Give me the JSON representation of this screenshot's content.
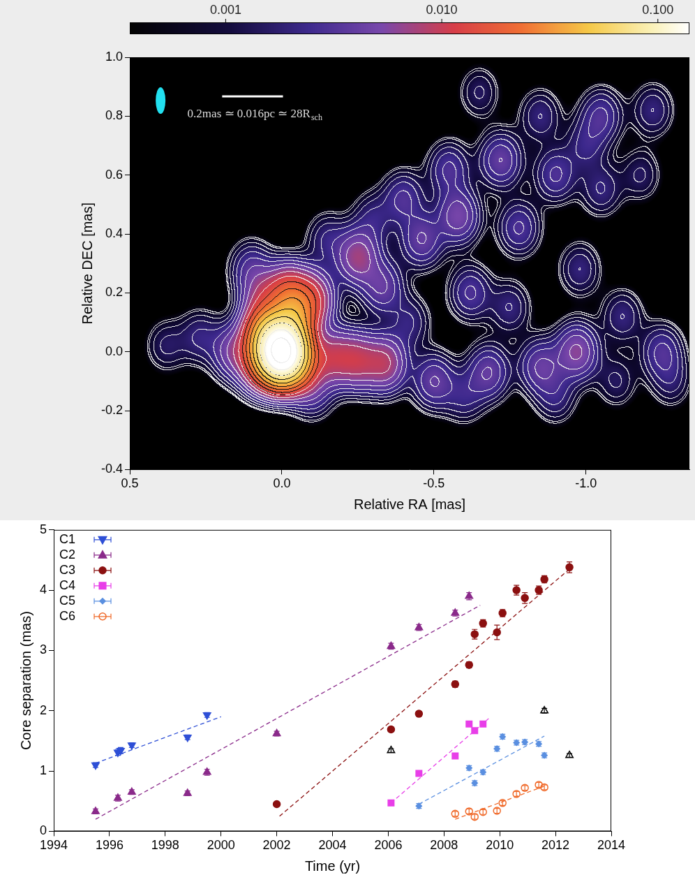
{
  "chart_data": [
    {
      "type": "image",
      "x_label": "Relative RA [mas]",
      "y_label": "Relative DEC [mas]",
      "xlim": [
        0.5,
        -1.34
      ],
      "xticks": [
        0.5,
        {
          "value": 0,
          "label": "0.0"
        },
        -0.5,
        {
          "value": -1,
          "label": "-1.0"
        }
      ],
      "ylim": [
        -0.4,
        1.0
      ],
      "yticks": [
        -0.4,
        -0.2,
        {
          "value": 0,
          "label": "0.0"
        },
        0.2,
        0.4,
        0.6,
        0.8,
        {
          "value": 1,
          "label": "1.0"
        }
      ],
      "colorbar": {
        "lim": [
          0.00036,
          0.14
        ],
        "log": true,
        "ticks": [
          0.001,
          {
            "value": 0.01,
            "label": "0.010"
          },
          {
            "value": 0.1,
            "label": "0.100"
          }
        ]
      },
      "scale_bar": {
        "length": 0.2,
        "label": "0.2mas ≃ 0.016pc ≃ 28R",
        "subscript": "sch"
      },
      "components": [
        {
          "x": 0,
          "y": 0,
          "flux": 0.2
        },
        {
          "x": 0.05,
          "y": 0.06,
          "flux": 0.03
        },
        {
          "x": -0.04,
          "y": 0.12,
          "flux": 0.025
        },
        {
          "x": 0.07,
          "y": -0.04,
          "flux": 0.012
        },
        {
          "x": -0.06,
          "y": -0.03,
          "flux": 0.015
        },
        {
          "x": -0.02,
          "y": 0.2,
          "flux": 0.012
        },
        {
          "x": 0.06,
          "y": 0.18,
          "flux": 0.006
        },
        {
          "x": -0.1,
          "y": 0.18,
          "flux": 0.01
        },
        {
          "x": 0.16,
          "y": 0.0,
          "flux": 0.005
        },
        {
          "x": -0.17,
          "y": -0.02,
          "flux": 0.008
        },
        {
          "x": -0.25,
          "y": -0.03,
          "flux": 0.008
        },
        {
          "x": -0.34,
          "y": -0.04,
          "flux": 0.008
        },
        {
          "x": -0.25,
          "y": 0.32,
          "flux": 0.007
        },
        {
          "x": -0.33,
          "y": 0.22,
          "flux": 0.004
        },
        {
          "x": -0.46,
          "y": 0.38,
          "flux": 0.004
        },
        {
          "x": -0.5,
          "y": -0.1,
          "flux": 0.004
        },
        {
          "x": -0.58,
          "y": 0.46,
          "flux": 0.005
        },
        {
          "x": -0.62,
          "y": 0.2,
          "flux": 0.003
        },
        {
          "x": -0.68,
          "y": -0.07,
          "flux": 0.004
        },
        {
          "x": -0.72,
          "y": 0.65,
          "flux": 0.004
        },
        {
          "x": -0.78,
          "y": 0.42,
          "flux": 0.003
        },
        {
          "x": -0.85,
          "y": -0.05,
          "flux": 0.004
        },
        {
          "x": -0.97,
          "y": 0.0,
          "flux": 0.006
        },
        {
          "x": -0.9,
          "y": 0.6,
          "flux": 0.003
        },
        {
          "x": -1.05,
          "y": 0.8,
          "flux": 0.003
        },
        {
          "x": -1.22,
          "y": 0.82,
          "flux": 0.002
        },
        {
          "x": -1.25,
          "y": 0.0,
          "flux": 0.003
        },
        {
          "x": -1.05,
          "y": 0.55,
          "flux": 0.002
        },
        {
          "x": -0.4,
          "y": 0.52,
          "flux": 0.003
        },
        {
          "x": -0.55,
          "y": 0.62,
          "flux": 0.003
        },
        {
          "x": -0.98,
          "y": 0.28,
          "flux": 0.002
        },
        {
          "x": -1.12,
          "y": 0.12,
          "flux": 0.002
        },
        {
          "x": 0.38,
          "y": 0.02,
          "flux": 0.0015
        },
        {
          "x": 0.27,
          "y": 0.05,
          "flux": 0.002
        },
        {
          "x": 0.1,
          "y": 0.28,
          "flux": 0.003
        },
        {
          "x": -0.15,
          "y": 0.38,
          "flux": 0.002
        },
        {
          "x": -0.1,
          "y": -0.13,
          "flux": 0.003
        },
        {
          "x": -0.42,
          "y": 0.1,
          "flux": 0.002
        },
        {
          "x": -0.6,
          "y": -0.15,
          "flux": 0.002
        },
        {
          "x": -0.75,
          "y": 0.15,
          "flux": 0.002
        },
        {
          "x": -0.9,
          "y": -0.15,
          "flux": 0.002
        },
        {
          "x": -1.1,
          "y": -0.1,
          "flux": 0.0015
        },
        {
          "x": -1.28,
          "y": -0.1,
          "flux": 0.0015
        },
        {
          "x": -0.85,
          "y": 0.8,
          "flux": 0.002
        },
        {
          "x": -0.65,
          "y": 0.88,
          "flux": 0.0015
        },
        {
          "x": -1.18,
          "y": 0.6,
          "flux": 0.0015
        },
        {
          "x": -0.3,
          "y": 0.45,
          "flux": 0.002
        },
        {
          "x": -1.0,
          "y": 0.7,
          "flux": 0.002
        }
      ]
    },
    {
      "type": "scatter",
      "x_label": "Time (yr)",
      "y_label": "Core separation (mas)",
      "xlim": [
        1994,
        2014
      ],
      "xticks": [
        1994,
        1996,
        1998,
        2000,
        2002,
        2004,
        2006,
        2008,
        2010,
        2012,
        2014
      ],
      "ylim": [
        0,
        5
      ],
      "yticks": [
        0,
        1,
        2,
        3,
        4,
        5
      ],
      "grid": false,
      "legend": "upper left",
      "series": [
        {
          "name": "C1",
          "color": "#2e4fd6",
          "marker": "triangle_down",
          "x": [
            1995.5,
            1996.3,
            1996.4,
            1996.8,
            1998.8,
            1999.5
          ],
          "values": [
            1.1,
            1.31,
            1.34,
            1.43,
            1.56,
            1.93
          ],
          "errors": [
            0.04,
            0.05,
            0.05,
            0.04,
            0.04,
            0.04
          ],
          "fit": {
            "x": [
              1995.5,
              2000
            ],
            "values": [
              1.13,
              1.9
            ]
          }
        },
        {
          "name": "C2",
          "color": "#8a2a8a",
          "marker": "triangle",
          "x": [
            1995.5,
            1996.3,
            1996.8,
            1998.8,
            1999.5,
            2002,
            2006.1,
            2007.1,
            2008.4,
            2008.9
          ],
          "values": [
            0.33,
            0.55,
            0.65,
            0.63,
            0.98,
            1.62,
            3.07,
            3.38,
            3.62,
            3.9
          ],
          "errors": [
            0.04,
            0.05,
            0.04,
            0.04,
            0.05,
            0.04,
            0.05,
            0.05,
            0.05,
            0.06
          ],
          "fit": {
            "x": [
              1995.5,
              2009.3
            ],
            "values": [
              0.2,
              3.75
            ]
          }
        },
        {
          "name": "C3",
          "color": "#8b1010",
          "marker": "circle",
          "x": [
            2002,
            2006.1,
            2007.1,
            2008.4,
            2008.9,
            2009.1,
            2009.4,
            2009.9,
            2010.1,
            2010.6,
            2010.9,
            2011.4,
            2011.6,
            2012.5
          ],
          "values": [
            0.45,
            1.69,
            1.95,
            2.44,
            2.76,
            3.27,
            3.45,
            3.3,
            3.62,
            4.0,
            3.87,
            4.0,
            4.18,
            4.38
          ],
          "errors": [
            0.03,
            0.04,
            0.04,
            0.05,
            0.05,
            0.08,
            0.06,
            0.12,
            0.06,
            0.08,
            0.09,
            0.07,
            0.06,
            0.09
          ],
          "fit": {
            "x": [
              2002.1,
              2012.5
            ],
            "values": [
              0.25,
              4.35
            ]
          }
        },
        {
          "name": "C4",
          "color": "#e83ee8",
          "marker": "square",
          "x": [
            2006.1,
            2007.1,
            2008.4,
            2008.9,
            2009.1,
            2009.4
          ],
          "values": [
            0.47,
            0.96,
            1.25,
            1.78,
            1.67,
            1.78
          ],
          "errors": [
            0.03,
            0.03,
            0.03,
            0.03,
            0.03,
            0.03
          ],
          "fit": {
            "x": [
              2006.1,
              2009.6
            ],
            "values": [
              0.47,
              1.87
            ]
          }
        },
        {
          "name": "C5",
          "color": "#5a8fe0",
          "marker": "diamond",
          "x": [
            2007.1,
            2008.9,
            2009.1,
            2009.4,
            2009.9,
            2010.1,
            2010.6,
            2010.9,
            2011.4,
            2011.6
          ],
          "values": [
            0.42,
            1.05,
            0.8,
            0.98,
            1.37,
            1.57,
            1.47,
            1.48,
            1.45,
            1.26
          ],
          "errors": [
            0.04,
            0.04,
            0.04,
            0.04,
            0.04,
            0.04,
            0.04,
            0.04,
            0.04,
            0.04
          ],
          "fit": {
            "x": [
              2007.1,
              2011.6
            ],
            "values": [
              0.45,
              1.58
            ]
          }
        },
        {
          "name": "C6",
          "color": "#f06a2a",
          "marker": "circle_open",
          "x": [
            2008.4,
            2008.9,
            2009.1,
            2009.4,
            2009.9,
            2010.1,
            2010.6,
            2010.9,
            2011.4,
            2011.6
          ],
          "values": [
            0.29,
            0.33,
            0.24,
            0.32,
            0.34,
            0.47,
            0.62,
            0.72,
            0.77,
            0.73
          ],
          "errors": [
            0.04,
            0.04,
            0.04,
            0.04,
            0.04,
            0.04,
            0.04,
            0.04,
            0.04,
            0.04
          ],
          "fit": {
            "x": [
              2008.4,
              2011.6
            ],
            "values": [
              0.2,
              0.75
            ]
          }
        },
        {
          "name": null,
          "color": "#000000",
          "marker": "triangle_open",
          "x": [
            2006.1,
            2011.6,
            2012.5
          ],
          "values": [
            1.34,
            2.0,
            1.26
          ],
          "errors": [
            0.03,
            0.04,
            0.03
          ]
        }
      ]
    }
  ]
}
